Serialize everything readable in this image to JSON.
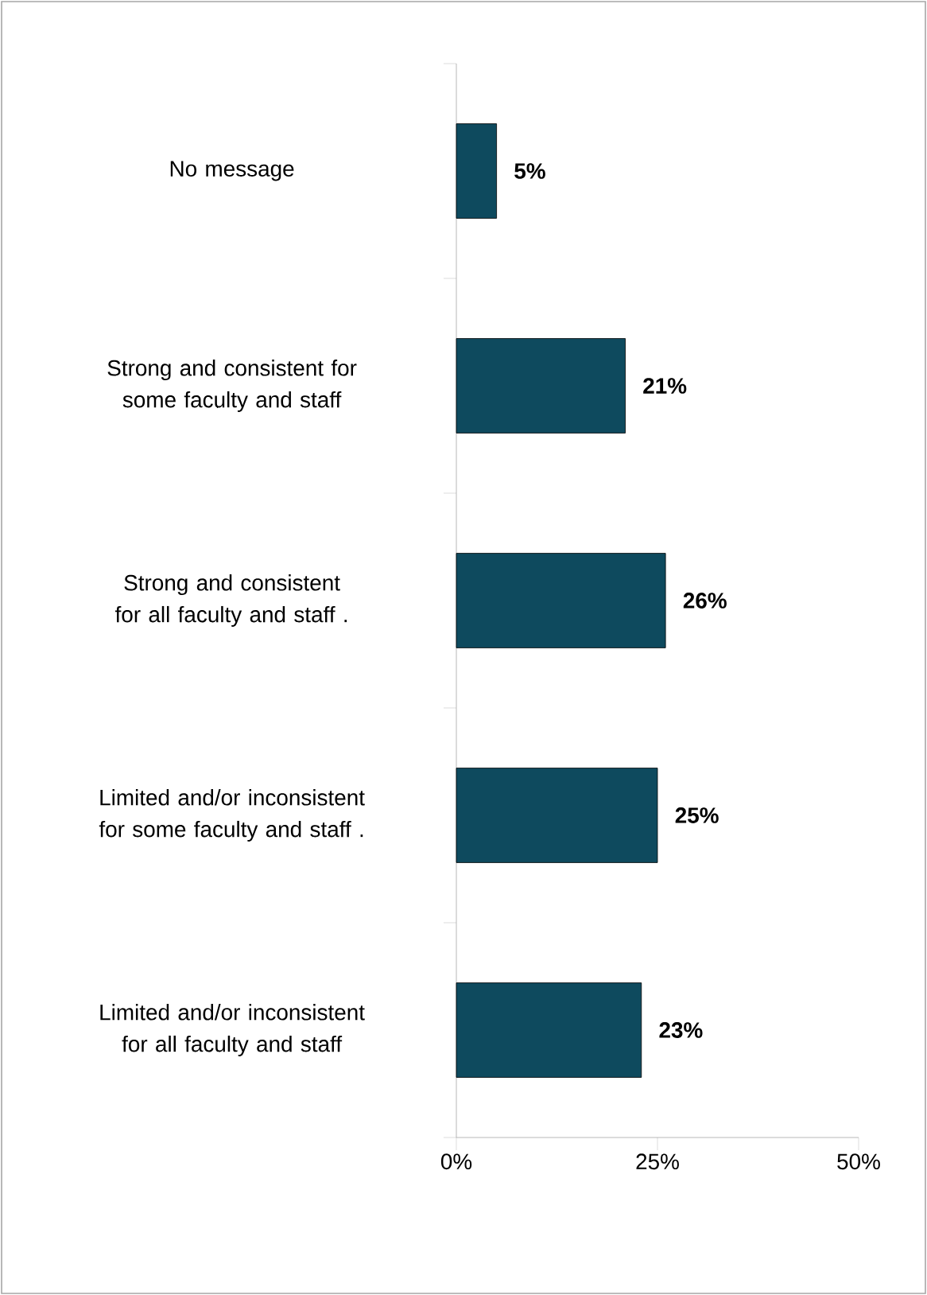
{
  "chart_data": {
    "type": "bar",
    "orientation": "horizontal",
    "categories": [
      "No message",
      "Strong and consistent for some faculty and staff",
      "Strong and consistent for all faculty and staff .",
      "Limited and/or inconsistent for some faculty and staff .",
      "Limited and/or inconsistent for all faculty and staff"
    ],
    "values": [
      5,
      21,
      26,
      25,
      23
    ],
    "value_labels": [
      "5%",
      "21%",
      "26%",
      "25%",
      "23%"
    ],
    "color": "#0e4a5e",
    "xlim": [
      0,
      50
    ],
    "xticks": [
      {
        "value": 0,
        "label": "0%"
      },
      {
        "value": 25,
        "label": "25%"
      },
      {
        "value": 50,
        "label": "50%"
      }
    ]
  }
}
